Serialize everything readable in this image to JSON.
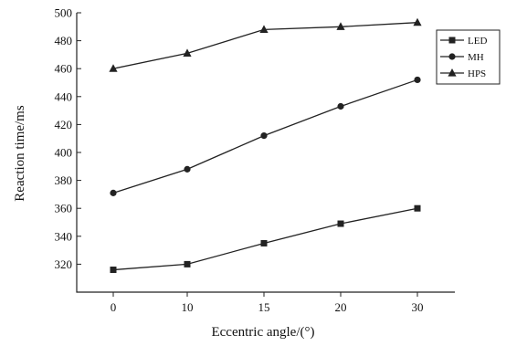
{
  "chart_data": {
    "type": "line",
    "title": "",
    "xlabel": "Eccentric angle/(°)",
    "ylabel": "Reaction time/ms",
    "categories": [
      "0",
      "10",
      "15",
      "20",
      "30"
    ],
    "ylim": [
      300,
      500
    ],
    "yticks": [
      320,
      340,
      360,
      380,
      400,
      420,
      440,
      460,
      480,
      500
    ],
    "grid": false,
    "legend_position": "top-right",
    "series": [
      {
        "name": "LED",
        "marker": "square",
        "color": "#222222",
        "values": [
          316,
          320,
          335,
          349,
          360
        ]
      },
      {
        "name": "MH",
        "marker": "circle",
        "color": "#222222",
        "values": [
          371,
          388,
          412,
          433,
          452
        ]
      },
      {
        "name": "HPS",
        "marker": "triangle",
        "color": "#222222",
        "values": [
          460,
          471,
          488,
          490,
          493
        ]
      }
    ]
  }
}
